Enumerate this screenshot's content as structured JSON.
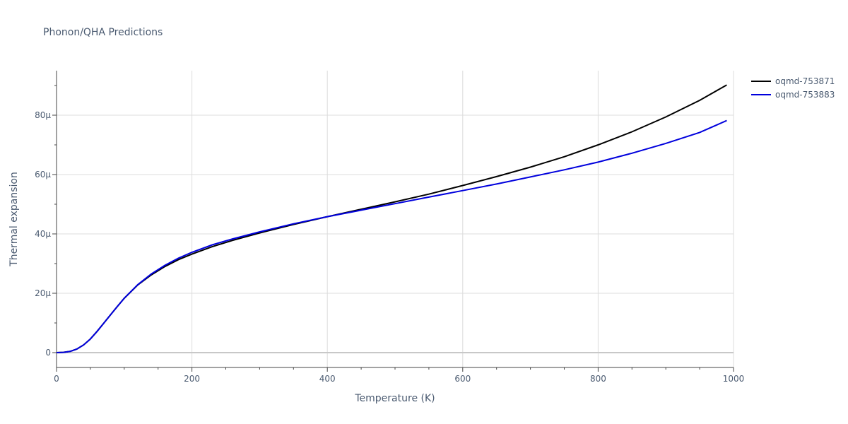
{
  "chart_data": {
    "type": "line",
    "title": "Phonon/QHA Predictions",
    "xlabel": "Temperature (K)",
    "ylabel": "Thermal expansion",
    "xlim": [
      0,
      1000
    ],
    "ylim": [
      -5,
      95
    ],
    "x_ticks": [
      0,
      200,
      400,
      600,
      800,
      1000
    ],
    "y_ticks": [
      0,
      20,
      40,
      60,
      80
    ],
    "x_tick_labels": [
      "0",
      "200",
      "400",
      "600",
      "800",
      "1000"
    ],
    "y_tick_labels": [
      "0",
      "20μ",
      "40μ",
      "60μ",
      "80μ"
    ],
    "grid": true,
    "legend_position": "top-right",
    "series": [
      {
        "name": "oqmd-753871",
        "color": "#000000",
        "x": [
          0,
          10,
          20,
          30,
          40,
          50,
          60,
          70,
          80,
          90,
          100,
          120,
          140,
          160,
          180,
          200,
          230,
          260,
          300,
          350,
          400,
          450,
          500,
          550,
          600,
          650,
          700,
          750,
          800,
          850,
          900,
          950,
          990
        ],
        "y": [
          0,
          0.1,
          0.4,
          1.2,
          2.6,
          4.6,
          7.2,
          10.0,
          12.8,
          15.6,
          18.3,
          22.8,
          26.2,
          29.0,
          31.3,
          33.2,
          35.7,
          37.8,
          40.3,
          43.2,
          45.8,
          48.3,
          50.8,
          53.4,
          56.3,
          59.3,
          62.5,
          66.0,
          70.0,
          74.4,
          79.4,
          85.0,
          90.2
        ]
      },
      {
        "name": "oqmd-753883",
        "color": "#0000dd",
        "x": [
          0,
          10,
          20,
          30,
          40,
          50,
          60,
          70,
          80,
          90,
          100,
          120,
          140,
          160,
          180,
          200,
          230,
          260,
          300,
          350,
          400,
          450,
          500,
          550,
          600,
          650,
          700,
          750,
          800,
          850,
          900,
          950,
          990
        ],
        "y": [
          0,
          0.1,
          0.4,
          1.2,
          2.6,
          4.6,
          7.2,
          10.0,
          12.8,
          15.6,
          18.3,
          22.9,
          26.5,
          29.4,
          31.8,
          33.8,
          36.3,
          38.3,
          40.7,
          43.4,
          45.8,
          48.0,
          50.2,
          52.4,
          54.6,
          56.8,
          59.2,
          61.6,
          64.2,
          67.2,
          70.5,
          74.2,
          78.2
        ]
      }
    ]
  }
}
